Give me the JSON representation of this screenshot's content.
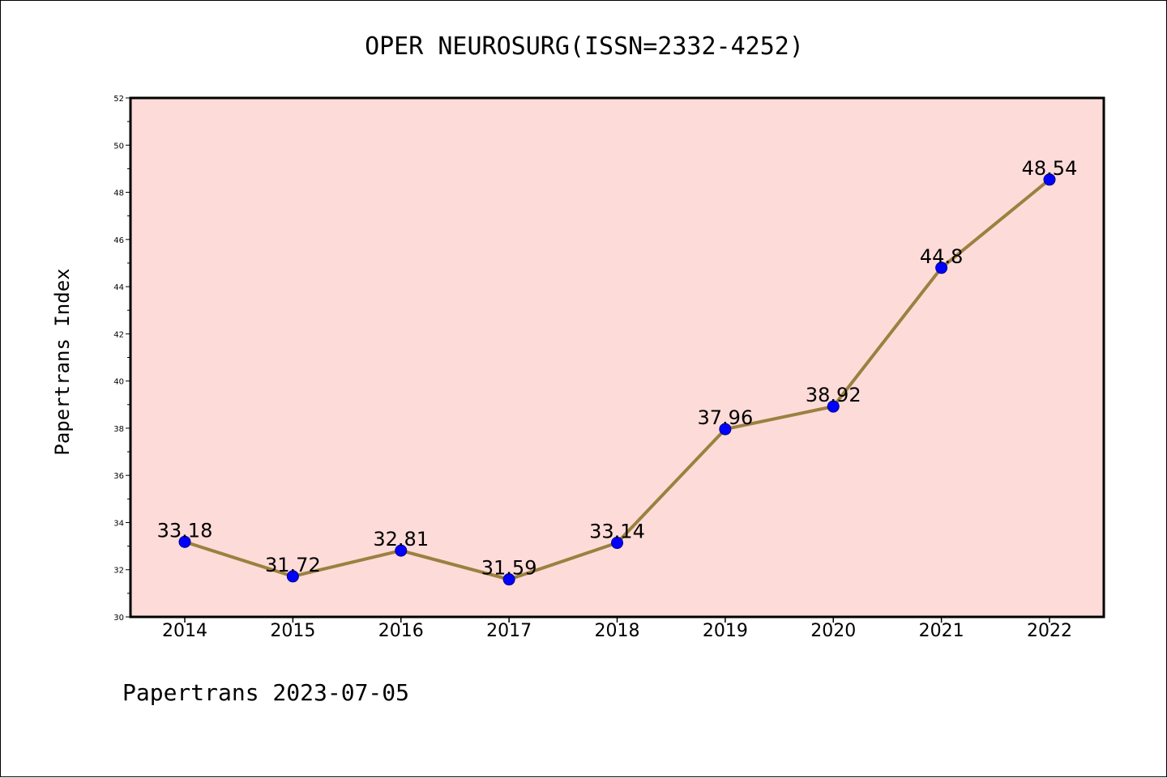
{
  "chart_data": {
    "type": "line",
    "title": "OPER NEUROSURG(ISSN=2332-4252)",
    "ylabel": "Papertrans Index",
    "xlabel": "",
    "footer": "Papertrans 2023-07-05",
    "categories": [
      "2014",
      "2015",
      "2016",
      "2017",
      "2018",
      "2019",
      "2020",
      "2021",
      "2022"
    ],
    "values": [
      33.18,
      31.72,
      32.81,
      31.59,
      33.14,
      37.96,
      38.92,
      44.8,
      48.54
    ],
    "data_labels": [
      "33.18",
      "31.72",
      "32.81",
      "31.59",
      "33.14",
      "37.96",
      "38.92",
      "44.8",
      "48.54"
    ],
    "ylim": [
      30,
      52
    ],
    "yticks": [
      "30",
      "32",
      "34",
      "36",
      "38",
      "40",
      "42",
      "44",
      "46",
      "48",
      "50",
      "52"
    ],
    "grid": false,
    "colors": {
      "plot_background": "#fddbd8",
      "line": "#9b8040",
      "marker": "#0000ff",
      "marker_edge": "#00008b"
    }
  }
}
